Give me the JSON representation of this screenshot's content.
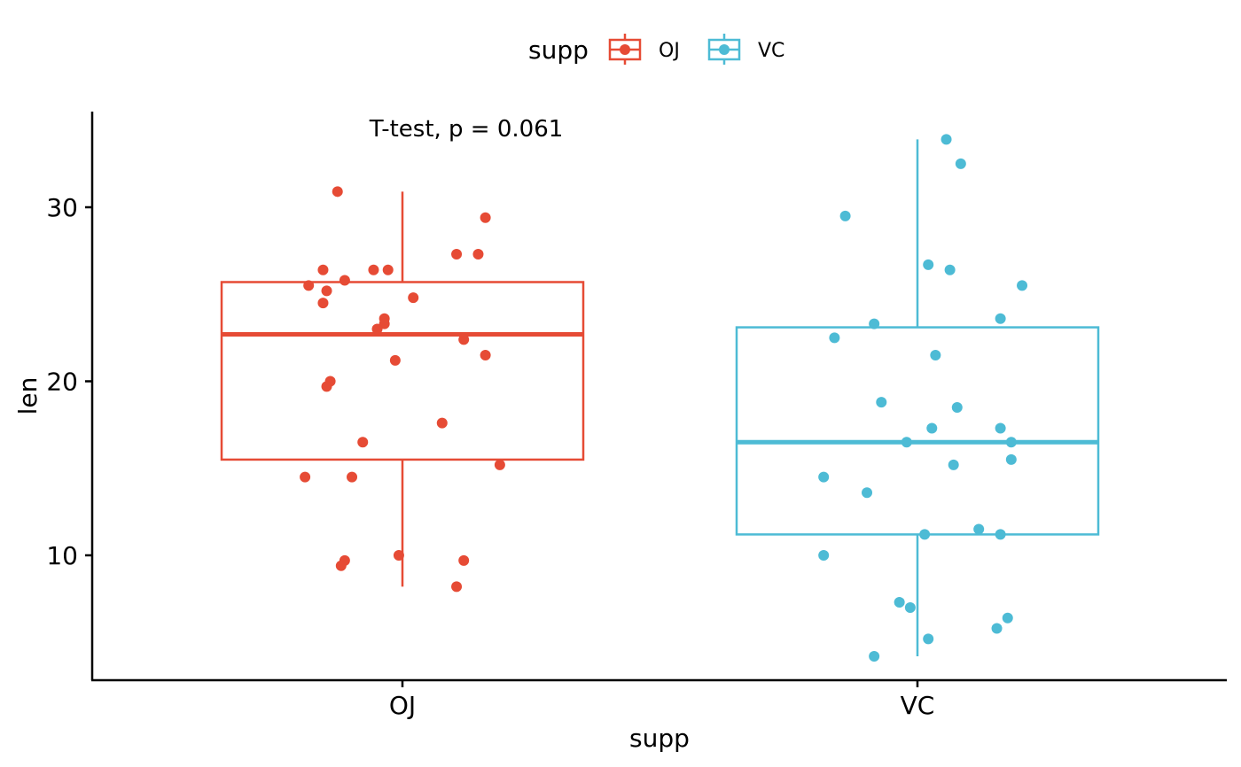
{
  "chart_data": {
    "type": "boxplot",
    "xlabel": "supp",
    "ylabel": "len",
    "ylim": [
      3,
      35.5
    ],
    "yticks": [
      "10",
      "20",
      "30"
    ],
    "categories": [
      "OJ",
      "VC"
    ],
    "legend": {
      "title": "supp",
      "entries": [
        "OJ",
        "VC"
      ],
      "position": "top"
    },
    "annotation": "T-test, p = 0.061",
    "grid": false,
    "series": [
      {
        "name": "OJ",
        "color": "#E64B35",
        "box": {
          "min": 8.2,
          "q1": 15.5,
          "median": 22.7,
          "q3": 25.7,
          "max": 30.9
        },
        "points": [
          {
            "dx": -0.18,
            "y": 30.9
          },
          {
            "dx": 0.23,
            "y": 29.4
          },
          {
            "dx": 0.15,
            "y": 27.3
          },
          {
            "dx": 0.21,
            "y": 27.3
          },
          {
            "dx": -0.22,
            "y": 26.4
          },
          {
            "dx": -0.08,
            "y": 26.4
          },
          {
            "dx": -0.04,
            "y": 26.4
          },
          {
            "dx": -0.16,
            "y": 25.8
          },
          {
            "dx": -0.26,
            "y": 25.5
          },
          {
            "dx": -0.21,
            "y": 25.2
          },
          {
            "dx": 0.03,
            "y": 24.8
          },
          {
            "dx": -0.22,
            "y": 24.5
          },
          {
            "dx": -0.05,
            "y": 23.6
          },
          {
            "dx": -0.05,
            "y": 23.3
          },
          {
            "dx": -0.07,
            "y": 23.0
          },
          {
            "dx": 0.17,
            "y": 22.4
          },
          {
            "dx": 0.23,
            "y": 21.5
          },
          {
            "dx": -0.02,
            "y": 21.2
          },
          {
            "dx": -0.2,
            "y": 20.0
          },
          {
            "dx": -0.21,
            "y": 19.7
          },
          {
            "dx": 0.11,
            "y": 17.6
          },
          {
            "dx": -0.11,
            "y": 16.5
          },
          {
            "dx": 0.27,
            "y": 15.2
          },
          {
            "dx": -0.27,
            "y": 14.5
          },
          {
            "dx": -0.14,
            "y": 14.5
          },
          {
            "dx": -0.16,
            "y": 9.7
          },
          {
            "dx": 0.17,
            "y": 9.7
          },
          {
            "dx": -0.17,
            "y": 9.4
          },
          {
            "dx": -0.01,
            "y": 10.0
          },
          {
            "dx": 0.15,
            "y": 8.2
          }
        ]
      },
      {
        "name": "VC",
        "color": "#4DBBD5",
        "box": {
          "min": 4.2,
          "q1": 11.2,
          "median": 16.5,
          "q3": 23.1,
          "max": 33.9
        },
        "points": [
          {
            "dx": 0.08,
            "y": 33.9
          },
          {
            "dx": 0.12,
            "y": 32.5
          },
          {
            "dx": -0.2,
            "y": 29.5
          },
          {
            "dx": 0.03,
            "y": 26.7
          },
          {
            "dx": 0.09,
            "y": 26.4
          },
          {
            "dx": 0.29,
            "y": 25.5
          },
          {
            "dx": 0.23,
            "y": 23.6
          },
          {
            "dx": -0.12,
            "y": 23.3
          },
          {
            "dx": -0.23,
            "y": 22.5
          },
          {
            "dx": 0.05,
            "y": 21.5
          },
          {
            "dx": -0.1,
            "y": 18.8
          },
          {
            "dx": 0.11,
            "y": 18.5
          },
          {
            "dx": 0.04,
            "y": 17.3
          },
          {
            "dx": 0.23,
            "y": 17.3
          },
          {
            "dx": -0.03,
            "y": 16.5
          },
          {
            "dx": 0.26,
            "y": 16.5
          },
          {
            "dx": 0.26,
            "y": 15.5
          },
          {
            "dx": 0.1,
            "y": 15.2
          },
          {
            "dx": -0.26,
            "y": 14.5
          },
          {
            "dx": -0.14,
            "y": 13.6
          },
          {
            "dx": 0.17,
            "y": 11.5
          },
          {
            "dx": 0.02,
            "y": 11.2
          },
          {
            "dx": 0.23,
            "y": 11.2
          },
          {
            "dx": -0.26,
            "y": 10.0
          },
          {
            "dx": -0.05,
            "y": 7.3
          },
          {
            "dx": -0.02,
            "y": 7.0
          },
          {
            "dx": 0.25,
            "y": 6.4
          },
          {
            "dx": 0.22,
            "y": 5.8
          },
          {
            "dx": 0.03,
            "y": 5.2
          },
          {
            "dx": -0.12,
            "y": 4.2
          }
        ]
      }
    ]
  }
}
